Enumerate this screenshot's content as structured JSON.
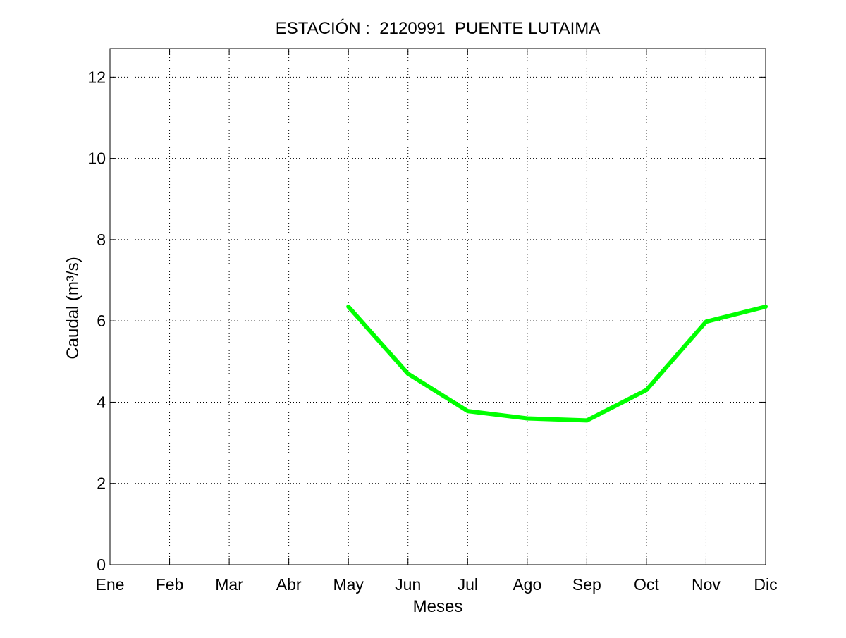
{
  "chart_data": {
    "type": "line",
    "title": "ESTACIÓN :  2120991  PUENTE LUTAIMA",
    "xlabel": "Meses",
    "ylabel": "Caudal (m³/s)",
    "categories": [
      "Ene",
      "Feb",
      "Mar",
      "Abr",
      "May",
      "Jun",
      "Jul",
      "Ago",
      "Sep",
      "Oct",
      "Nov",
      "Dic"
    ],
    "ylim": [
      0,
      12.7
    ],
    "yticks": [
      0,
      2,
      4,
      6,
      8,
      10,
      12
    ],
    "grid": true,
    "series": [
      {
        "color": "#00ff00",
        "values": [
          null,
          null,
          null,
          null,
          6.35,
          4.7,
          3.78,
          3.6,
          3.55,
          4.3,
          5.98,
          6.35
        ]
      }
    ]
  }
}
